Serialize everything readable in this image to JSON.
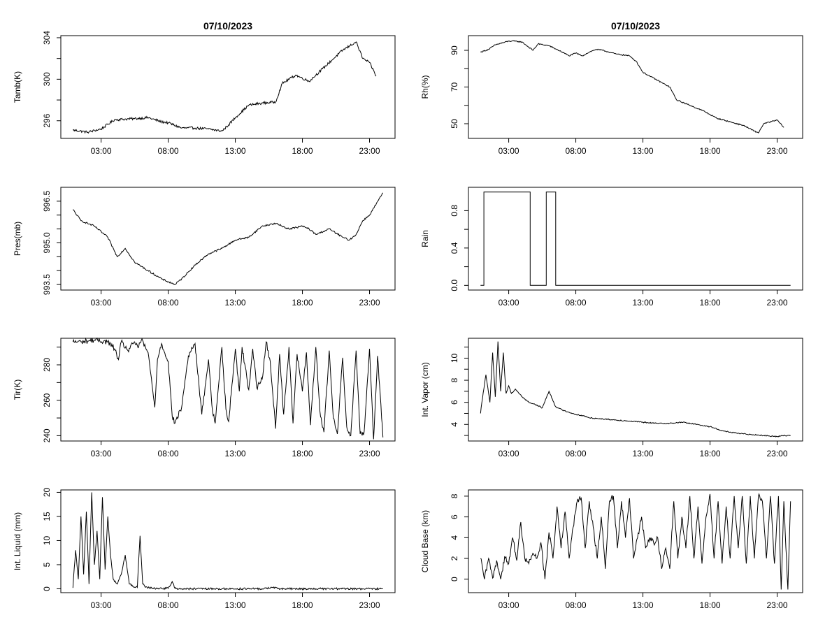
{
  "figure": {
    "titles": [
      "07/10/2023",
      "07/10/2023"
    ]
  },
  "chart_data": [
    {
      "type": "line",
      "panel": "temperature",
      "title": "07/10/2023",
      "ylabel": "Tamb(K)",
      "xlabel": "",
      "xlim_hours": [
        0.0,
        24.9
      ],
      "ylim": [
        294.3,
        304.2
      ],
      "x_ticks": [
        3,
        8,
        13,
        18,
        23
      ],
      "x_tick_labels": [
        "03:00",
        "08:00",
        "13:00",
        "18:00",
        "23:00"
      ],
      "y_ticks": [
        296,
        300,
        304
      ],
      "y_minor_ticks": [
        298,
        302
      ],
      "noise": 0.12,
      "x": [
        0.9,
        2.0,
        3.0,
        4.0,
        5.5,
        6.5,
        7.5,
        8.0,
        9.0,
        10.0,
        11.0,
        12.0,
        12.5,
        13.0,
        14.0,
        15.0,
        16.0,
        16.5,
        17.5,
        18.5,
        19.5,
        20.5,
        21.0,
        21.5,
        22.0,
        22.5,
        23.0,
        23.5
      ],
      "y": [
        295.1,
        294.9,
        295.2,
        296.1,
        296.2,
        296.3,
        295.9,
        295.8,
        295.3,
        295.3,
        295.2,
        295.0,
        295.6,
        296.3,
        297.5,
        297.7,
        297.8,
        299.6,
        300.4,
        299.8,
        301.0,
        302.2,
        302.8,
        303.2,
        303.6,
        302.0,
        301.6,
        300.3
      ]
    },
    {
      "type": "line",
      "panel": "humidity",
      "title": "07/10/2023",
      "ylabel": "Rh(%)",
      "xlabel": "",
      "xlim_hours": [
        0.0,
        24.9
      ],
      "ylim": [
        42,
        98
      ],
      "x_ticks": [
        3,
        8,
        13,
        18,
        23
      ],
      "x_tick_labels": [
        "03:00",
        "08:00",
        "13:00",
        "18:00",
        "23:00"
      ],
      "y_ticks": [
        50,
        70,
        90
      ],
      "y_minor_ticks": [
        60,
        80
      ],
      "noise": 0.3,
      "x": [
        0.9,
        1.5,
        2.0,
        3.0,
        3.5,
        4.0,
        4.8,
        5.2,
        6.0,
        7.0,
        7.5,
        8.0,
        8.5,
        9.0,
        9.5,
        10.0,
        11.0,
        12.0,
        12.5,
        13.0,
        13.5,
        14.0,
        15.0,
        15.5,
        16.5,
        17.5,
        18.5,
        19.5,
        20.5,
        21.3,
        21.6,
        22.0,
        22.5,
        23.0,
        23.5
      ],
      "y": [
        89,
        90.5,
        93,
        95,
        95,
        94.5,
        90,
        93.5,
        92.5,
        89,
        87,
        88.5,
        87,
        89,
        90.5,
        90,
        88,
        87,
        84,
        78,
        76,
        74,
        70,
        63,
        60,
        57,
        53,
        51,
        49,
        46,
        45,
        50,
        51,
        52,
        48
      ]
    },
    {
      "type": "line",
      "panel": "pressure",
      "title": "",
      "ylabel": "Pres(mb)",
      "xlabel": "",
      "xlim_hours": [
        0.0,
        24.9
      ],
      "ylim": [
        993.3,
        997.0
      ],
      "x_ticks": [
        3,
        8,
        13,
        18,
        23
      ],
      "x_tick_labels": [
        "03:00",
        "08:00",
        "13:00",
        "18:00",
        "23:00"
      ],
      "y_ticks": [
        993.5,
        995.0,
        996.5
      ],
      "y_tick_labels": [
        "993.5",
        "995.0",
        "996.5"
      ],
      "y_minor_ticks": [
        994.0,
        994.5,
        995.5,
        996.0
      ],
      "noise": 0.03,
      "x": [
        0.9,
        1.5,
        2.5,
        3.5,
        4.2,
        4.8,
        5.5,
        6.5,
        7.5,
        8.5,
        9.0,
        10.0,
        11.0,
        12.0,
        13.0,
        14.0,
        15.0,
        16.0,
        17.0,
        18.0,
        18.5,
        19.0,
        20.0,
        21.0,
        21.5,
        22.0,
        22.5,
        23.0,
        23.5,
        24.0
      ],
      "y": [
        996.2,
        995.8,
        995.6,
        995.2,
        994.5,
        994.8,
        994.3,
        994.0,
        993.7,
        993.5,
        993.7,
        994.2,
        994.6,
        994.8,
        995.1,
        995.2,
        995.6,
        995.7,
        995.5,
        995.6,
        995.5,
        995.3,
        995.5,
        995.2,
        995.1,
        995.3,
        995.8,
        996.0,
        996.4,
        996.8
      ]
    },
    {
      "type": "line",
      "panel": "rain",
      "title": "",
      "ylabel": "Rain",
      "xlabel": "",
      "xlim_hours": [
        0.0,
        24.9
      ],
      "ylim": [
        -0.05,
        1.05
      ],
      "x_ticks": [
        3,
        8,
        13,
        18,
        23
      ],
      "x_tick_labels": [
        "03:00",
        "08:00",
        "13:00",
        "18:00",
        "23:00"
      ],
      "y_ticks": [
        0.0,
        0.4,
        0.8
      ],
      "y_tick_labels": [
        "0.0",
        "0.4",
        "0.8"
      ],
      "y_minor_ticks": [
        0.2,
        0.6
      ],
      "x": [
        0.9,
        1.15,
        1.15,
        4.6,
        4.6,
        5.8,
        5.8,
        6.5,
        6.5,
        24.0
      ],
      "y": [
        0,
        0,
        1,
        1,
        0,
        0,
        1,
        1,
        0,
        0
      ]
    },
    {
      "type": "line",
      "panel": "tir",
      "title": "",
      "ylabel": "Tir(K)",
      "xlabel": "",
      "xlim_hours": [
        0.0,
        24.9
      ],
      "ylim": [
        237,
        295
      ],
      "x_ticks": [
        3,
        8,
        13,
        18,
        23
      ],
      "x_tick_labels": [
        "03:00",
        "08:00",
        "13:00",
        "18:00",
        "23:00"
      ],
      "y_ticks": [
        240,
        260,
        280
      ],
      "y_minor_ticks": [
        250,
        270,
        290
      ],
      "noise": 1.5,
      "x": [
        0.9,
        1.5,
        2.5,
        3.5,
        4.0,
        4.3,
        4.5,
        5.0,
        5.5,
        5.8,
        6.0,
        6.5,
        7.0,
        7.2,
        7.5,
        8.0,
        8.3,
        8.5,
        9.0,
        9.5,
        10.0,
        10.3,
        10.5,
        11.0,
        11.3,
        11.5,
        12.0,
        12.3,
        12.5,
        13.0,
        13.3,
        13.5,
        14.0,
        14.3,
        14.6,
        15.0,
        15.3,
        15.6,
        16.0,
        16.3,
        16.6,
        17.0,
        17.3,
        17.6,
        18.0,
        18.3,
        18.6,
        19.0,
        19.3,
        19.6,
        20.0,
        20.3,
        20.6,
        21.0,
        21.3,
        21.6,
        22.0,
        22.3,
        22.6,
        23.0,
        23.3,
        23.6,
        24.0
      ],
      "y": [
        293,
        293,
        294,
        293,
        289,
        283,
        293,
        288,
        293,
        290,
        294,
        287,
        256,
        283,
        292,
        282,
        251,
        247,
        256,
        285,
        292,
        268,
        252,
        283,
        254,
        247,
        290,
        255,
        248,
        289,
        265,
        290,
        266,
        289,
        267,
        272,
        293,
        282,
        244,
        286,
        252,
        290,
        247,
        286,
        265,
        287,
        246,
        290,
        254,
        242,
        288,
        250,
        241,
        284,
        245,
        240,
        288,
        241,
        242,
        289,
        238,
        285,
        239
      ]
    },
    {
      "type": "line",
      "panel": "vapor",
      "title": "",
      "ylabel": "Int. Vapor (cm)",
      "xlabel": "",
      "xlim_hours": [
        0.0,
        24.9
      ],
      "ylim": [
        2.5,
        11.8
      ],
      "x_ticks": [
        3,
        8,
        13,
        18,
        23
      ],
      "x_tick_labels": [
        "03:00",
        "08:00",
        "13:00",
        "18:00",
        "23:00"
      ],
      "y_ticks": [
        4,
        6,
        8,
        10
      ],
      "y_minor_ticks": [
        3,
        5,
        7,
        9,
        11
      ],
      "noise": 0.05,
      "x": [
        0.9,
        1.0,
        1.3,
        1.6,
        1.8,
        2.0,
        2.2,
        2.4,
        2.6,
        2.8,
        3.0,
        3.2,
        3.5,
        4.0,
        4.5,
        5.0,
        5.5,
        6.0,
        6.5,
        7.0,
        7.5,
        8.0,
        8.5,
        9.0,
        10.0,
        11.0,
        12.0,
        13.0,
        14.0,
        15.0,
        16.0,
        17.0,
        18.0,
        19.0,
        20.0,
        21.0,
        22.0,
        23.0,
        23.5,
        24.0
      ],
      "y": [
        5.0,
        6.0,
        8.5,
        6.0,
        10.5,
        6.5,
        11.5,
        7.0,
        10.5,
        6.8,
        7.5,
        6.8,
        7.2,
        6.5,
        6.0,
        5.8,
        5.5,
        7.0,
        5.6,
        5.3,
        5.1,
        4.9,
        4.8,
        4.6,
        4.5,
        4.4,
        4.3,
        4.2,
        4.1,
        4.1,
        4.2,
        4.0,
        3.8,
        3.4,
        3.2,
        3.1,
        3.0,
        2.9,
        3.0,
        3.0
      ]
    },
    {
      "type": "line",
      "panel": "liquid",
      "title": "",
      "ylabel": "Int. Liquid (mm)",
      "xlabel": "",
      "xlim_hours": [
        0.0,
        24.9
      ],
      "ylim": [
        -0.8,
        20.5
      ],
      "x_ticks": [
        3,
        8,
        13,
        18,
        23
      ],
      "x_tick_labels": [
        "03:00",
        "08:00",
        "13:00",
        "18:00",
        "23:00"
      ],
      "y_ticks": [
        0,
        5,
        10,
        15,
        20
      ],
      "noise": 0.2,
      "x": [
        0.9,
        1.1,
        1.3,
        1.5,
        1.7,
        1.9,
        2.1,
        2.3,
        2.5,
        2.7,
        2.9,
        3.1,
        3.3,
        3.5,
        3.7,
        3.9,
        4.2,
        4.5,
        4.8,
        5.1,
        5.4,
        5.7,
        5.9,
        6.1,
        6.3,
        6.6,
        7.0,
        7.5,
        8.0,
        8.3,
        8.5,
        9.0,
        12.0,
        15.0,
        15.8,
        16.2,
        19.0,
        20.0,
        23.5,
        24.0
      ],
      "y": [
        0.2,
        8,
        2,
        15,
        3,
        16,
        1,
        20,
        5,
        12,
        2,
        19,
        4,
        15,
        7,
        2,
        1,
        3,
        7,
        1,
        0.5,
        0.3,
        11,
        1,
        0.3,
        0.2,
        0.1,
        0.1,
        0.1,
        1.5,
        0.1,
        0,
        0,
        0,
        0.3,
        0,
        0,
        0,
        0,
        0
      ]
    },
    {
      "type": "line",
      "panel": "cloud_base",
      "title": "",
      "ylabel": "Cloud Base (km)",
      "xlabel": "",
      "xlim_hours": [
        0.0,
        24.9
      ],
      "ylim": [
        -1.3,
        8.6
      ],
      "x_ticks": [
        3,
        8,
        13,
        18,
        23
      ],
      "x_tick_labels": [
        "03:00",
        "08:00",
        "13:00",
        "18:00",
        "23:00"
      ],
      "y_ticks": [
        0,
        2,
        4,
        6,
        8
      ],
      "noise": 0.3,
      "x": [
        0.9,
        1.2,
        1.5,
        1.8,
        2.1,
        2.4,
        2.7,
        3.0,
        3.3,
        3.6,
        3.9,
        4.2,
        4.5,
        4.8,
        5.1,
        5.4,
        5.7,
        6.0,
        6.3,
        6.6,
        6.9,
        7.2,
        7.5,
        7.8,
        8.1,
        8.4,
        8.7,
        9.0,
        9.3,
        9.6,
        9.9,
        10.2,
        10.5,
        10.8,
        11.1,
        11.4,
        11.7,
        12.0,
        12.3,
        12.6,
        12.9,
        13.2,
        13.5,
        13.8,
        14.1,
        14.4,
        14.7,
        15.0,
        15.3,
        15.6,
        15.9,
        16.2,
        16.5,
        16.8,
        17.1,
        17.4,
        17.7,
        18.0,
        18.3,
        18.6,
        18.9,
        19.2,
        19.5,
        19.8,
        20.1,
        20.4,
        20.7,
        21.0,
        21.3,
        21.6,
        21.9,
        22.2,
        22.5,
        22.8,
        23.1,
        23.3,
        23.5,
        23.8,
        24.0
      ],
      "y": [
        2.0,
        0.0,
        2.0,
        0.1,
        1.8,
        0.0,
        2.2,
        1.5,
        4.0,
        1.8,
        5.5,
        2.0,
        1.5,
        2.5,
        2.0,
        3.5,
        0.0,
        4.5,
        2.0,
        7.0,
        3.0,
        6.5,
        2.0,
        5.0,
        7.5,
        7.8,
        3.0,
        7.5,
        5.0,
        2.0,
        6.0,
        1.0,
        7.5,
        8.0,
        3.0,
        7.5,
        4.0,
        7.8,
        2.0,
        4.0,
        6.0,
        3.0,
        4.0,
        3.5,
        4.0,
        1.0,
        3.0,
        1.0,
        7.5,
        2.0,
        6.0,
        3.0,
        8.0,
        2.0,
        7.0,
        1.5,
        6.0,
        8.2,
        2.0,
        7.5,
        1.5,
        7.0,
        2.0,
        8.0,
        3.0,
        8.0,
        1.5,
        8.0,
        2.0,
        8.0,
        7.5,
        2.0,
        8.0,
        1.5,
        8.0,
        -1.0,
        7.5,
        -1.0,
        7.5
      ]
    }
  ]
}
